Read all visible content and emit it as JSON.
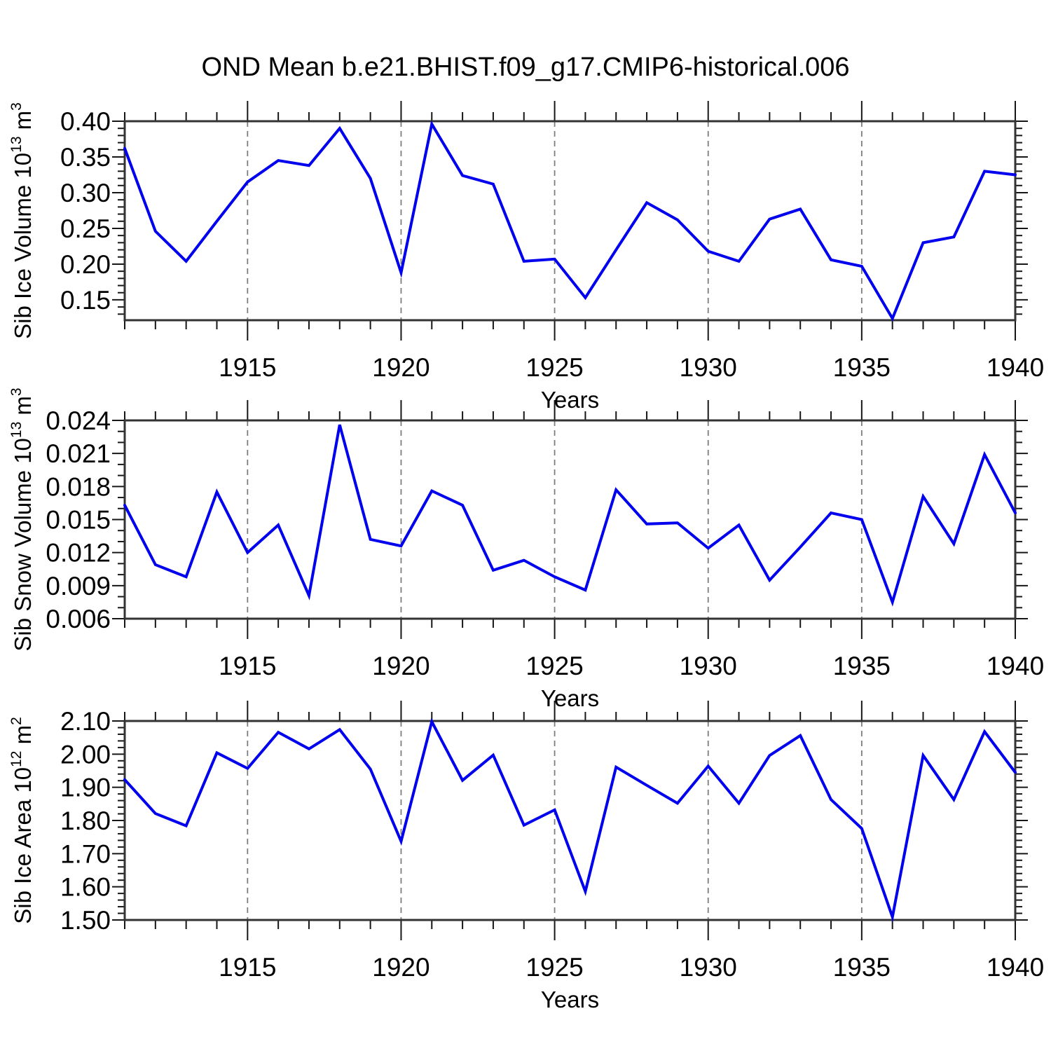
{
  "title": "OND Mean b.e21.BHIST.f09_g17.CMIP6-historical.006",
  "chart_data": [
    {
      "type": "line",
      "name": "sib-ice-volume",
      "line_color": "#0000EE",
      "xlabel": "Years",
      "ylabel": {
        "base": "Sib Ice Volume 10",
        "sup1": "13",
        "mid": " m",
        "sup2": "3"
      },
      "xlim": [
        1911,
        1940
      ],
      "ylim": [
        0.1215,
        0.4
      ],
      "x": [
        1911,
        1912,
        1913,
        1914,
        1915,
        1916,
        1917,
        1918,
        1919,
        1920,
        1921,
        1922,
        1923,
        1924,
        1925,
        1926,
        1927,
        1928,
        1929,
        1930,
        1931,
        1932,
        1933,
        1934,
        1935,
        1936,
        1937,
        1938,
        1939,
        1940
      ],
      "values": [
        0.362,
        0.246,
        0.204,
        0.26,
        0.315,
        0.345,
        0.338,
        0.39,
        0.32,
        0.188,
        0.396,
        0.324,
        0.312,
        0.204,
        0.207,
        0.153,
        0.22,
        0.286,
        0.262,
        0.218,
        0.204,
        0.263,
        0.277,
        0.206,
        0.197,
        0.124,
        0.23,
        0.238,
        0.33,
        0.325
      ],
      "xticks": {
        "major": [
          1915,
          1920,
          1925,
          1930,
          1935,
          1940
        ],
        "labels": [
          "1915",
          "1920",
          "1925",
          "1930",
          "1935",
          "1940"
        ],
        "minor_step": 1,
        "grid": [
          1915,
          1920,
          1925,
          1930,
          1935
        ]
      },
      "yticks": {
        "major": [
          0.15,
          0.2,
          0.25,
          0.3,
          0.35,
          0.4
        ],
        "labels": [
          "0.15",
          "0.20",
          "0.25",
          "0.30",
          "0.35",
          "0.40"
        ],
        "minor_step": 0.01
      }
    },
    {
      "type": "line",
      "name": "sib-snow-volume",
      "line_color": "#0000EE",
      "xlabel": "Years",
      "ylabel": {
        "base": "Sib Snow Volume 10",
        "sup1": "13",
        "mid": " m",
        "sup2": "3"
      },
      "xlim": [
        1911,
        1940
      ],
      "ylim": [
        0.006,
        0.024
      ],
      "x": [
        1911,
        1912,
        1913,
        1914,
        1915,
        1916,
        1917,
        1918,
        1919,
        1920,
        1921,
        1922,
        1923,
        1924,
        1925,
        1926,
        1927,
        1928,
        1929,
        1930,
        1931,
        1932,
        1933,
        1934,
        1935,
        1936,
        1937,
        1938,
        1939,
        1940
      ],
      "values": [
        0.0163,
        0.0109,
        0.0098,
        0.0175,
        0.012,
        0.0145,
        0.0081,
        0.0236,
        0.0132,
        0.0126,
        0.0176,
        0.0163,
        0.0104,
        0.0113,
        0.0098,
        0.0086,
        0.0177,
        0.0146,
        0.0147,
        0.0124,
        0.0145,
        0.0095,
        0.0125,
        0.0156,
        0.015,
        0.0075,
        0.0171,
        0.0128,
        0.0209,
        0.0156
      ],
      "xticks": {
        "major": [
          1915,
          1920,
          1925,
          1930,
          1935,
          1940
        ],
        "labels": [
          "1915",
          "1920",
          "1925",
          "1930",
          "1935",
          "1940"
        ],
        "minor_step": 1,
        "grid": [
          1915,
          1920,
          1925,
          1930,
          1935
        ]
      },
      "yticks": {
        "major": [
          0.006,
          0.009,
          0.012,
          0.015,
          0.018,
          0.021,
          0.024
        ],
        "labels": [
          "0.006",
          "0.009",
          "0.012",
          "0.015",
          "0.018",
          "0.021",
          "0.024"
        ],
        "minor_step": 0.001
      }
    },
    {
      "type": "line",
      "name": "sib-ice-area",
      "line_color": "#0000EE",
      "xlabel": "Years",
      "ylabel": {
        "base": "Sib Ice Area 10",
        "sup1": "12",
        "mid": " m",
        "sup2": "2"
      },
      "xlim": [
        1911,
        1940
      ],
      "ylim": [
        1.5,
        2.1
      ],
      "x": [
        1911,
        1912,
        1913,
        1914,
        1915,
        1916,
        1917,
        1918,
        1919,
        1920,
        1921,
        1922,
        1923,
        1924,
        1925,
        1926,
        1927,
        1928,
        1929,
        1930,
        1931,
        1932,
        1933,
        1934,
        1935,
        1936,
        1937,
        1938,
        1939,
        1940
      ],
      "values": [
        1.923,
        1.821,
        1.784,
        2.004,
        1.957,
        2.066,
        2.016,
        2.074,
        1.955,
        1.737,
        2.098,
        1.921,
        1.997,
        1.786,
        1.832,
        1.586,
        1.961,
        1.906,
        1.852,
        1.964,
        1.852,
        1.996,
        2.056,
        1.863,
        1.776,
        1.509,
        1.996,
        1.863,
        2.068,
        1.945
      ],
      "xticks": {
        "major": [
          1915,
          1920,
          1925,
          1930,
          1935,
          1940
        ],
        "labels": [
          "1915",
          "1920",
          "1925",
          "1930",
          "1935",
          "1940"
        ],
        "minor_step": 1,
        "grid": [
          1915,
          1920,
          1925,
          1930,
          1935
        ]
      },
      "yticks": {
        "major": [
          1.5,
          1.6,
          1.7,
          1.8,
          1.9,
          2.0,
          2.1
        ],
        "labels": [
          "1.50",
          "1.60",
          "1.70",
          "1.80",
          "1.90",
          "2.00",
          "2.10"
        ],
        "minor_step": 0.02
      }
    }
  ]
}
